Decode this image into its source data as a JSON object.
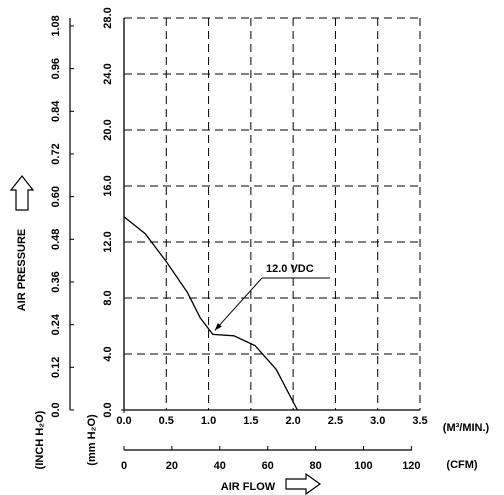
{
  "chart_data": {
    "type": "line",
    "y_label": "AIR PRESSURE",
    "y_unit_label": "(mm H₂O)",
    "y2_label": "(INCH H₂O)",
    "x_label": "AIR FLOW",
    "x_unit_label": "(M³/MIN.)",
    "x2_unit_label": "(CFM)",
    "x": [
      0,
      0.25,
      0.5,
      0.75,
      0.9,
      1.05,
      1.3,
      1.55,
      1.8,
      2.05
    ],
    "series": [
      {
        "name": "12.0 VDC",
        "color": "#000000",
        "values": [
          13.8,
          12.6,
          10.6,
          8.4,
          6.6,
          5.4,
          5.3,
          4.6,
          2.9,
          0
        ]
      }
    ],
    "xlim": [
      0,
      3.5
    ],
    "xticks": [
      {
        "value": 0,
        "label": "0.0"
      },
      0.5,
      {
        "value": 1,
        "label": "1.0"
      },
      1.5,
      {
        "value": 2,
        "label": "2.0"
      },
      2.5,
      {
        "value": 3,
        "label": "3.0"
      },
      3.5
    ],
    "x2lim": [
      0,
      123.6
    ],
    "x2ticks": [
      0,
      20,
      40,
      60,
      80,
      100,
      120
    ],
    "ylim": [
      0,
      28
    ],
    "yticks": [
      {
        "value": 0,
        "label": "0.0"
      },
      {
        "value": 4,
        "label": "4.0"
      },
      {
        "value": 8,
        "label": "8.0"
      },
      {
        "value": 12,
        "label": "12.0"
      },
      {
        "value": 16,
        "label": "16.0"
      },
      {
        "value": 20,
        "label": "20.0"
      },
      {
        "value": 24,
        "label": "24.0"
      },
      {
        "value": 28,
        "label": "28.0"
      }
    ],
    "y2lim": [
      0,
      1.1024
    ],
    "y2ticks": [
      {
        "value": 0,
        "label": "0.0"
      },
      0.12,
      0.24,
      0.36,
      0.48,
      {
        "value": 0.6,
        "label": "0.60"
      },
      0.72,
      0.84,
      0.96,
      1.08
    ],
    "grid": true
  }
}
